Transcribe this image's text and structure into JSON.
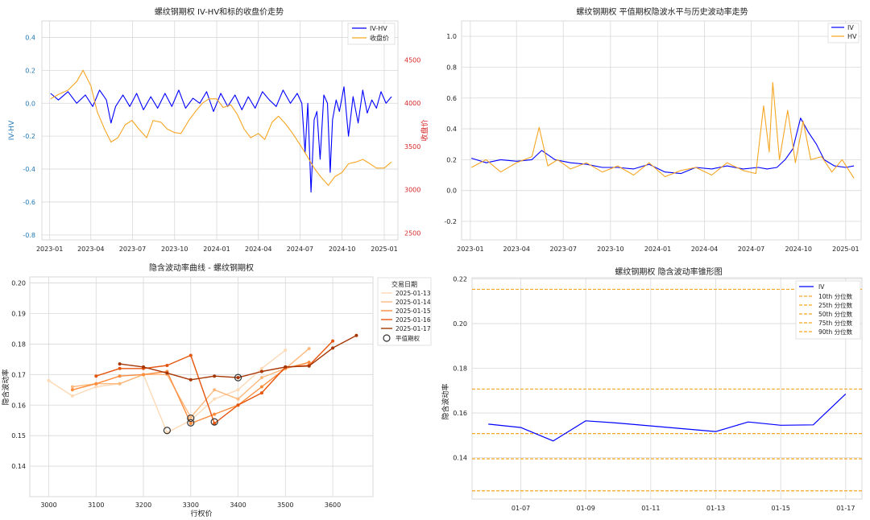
{
  "chart_data": [
    {
      "type": "line",
      "title": "螺纹钢期权 IV-HV和标的收盘价走势",
      "ylabel_left": "IV-HV",
      "ylabel_right": "收盘价",
      "xlim": [
        "2022-12-15",
        "2025-01-31"
      ],
      "ylim_left": [
        -0.83,
        0.5
      ],
      "ylim_right": [
        2420,
        4950
      ],
      "x_ticks": [
        "2023-01",
        "2023-04",
        "2023-07",
        "2023-10",
        "2024-01",
        "2024-04",
        "2024-07",
        "2024-10",
        "2025-01"
      ],
      "y_ticks_left": [
        "0.4",
        "0.2",
        "0.0",
        "-0.2",
        "-0.4",
        "-0.6",
        "-0.8"
      ],
      "y_ticks_right": [
        "4500",
        "4000",
        "3500",
        "3000",
        "2500"
      ],
      "grid": true,
      "legend": "top-right",
      "legend_entries": [
        "IV-HV",
        "收盘价"
      ],
      "series": [
        {
          "name": "IV-HV",
          "axis": "left",
          "color": "#0000ff",
          "x": [
            "2023-01-03",
            "2023-01-20",
            "2023-02-10",
            "2023-03-01",
            "2023-03-20",
            "2023-04-05",
            "2023-04-20",
            "2023-05-05",
            "2023-05-15",
            "2023-05-25",
            "2023-06-10",
            "2023-06-25",
            "2023-07-10",
            "2023-07-25",
            "2023-08-10",
            "2023-08-25",
            "2023-09-10",
            "2023-09-25",
            "2023-10-10",
            "2023-10-25",
            "2023-11-10",
            "2023-11-25",
            "2023-12-10",
            "2023-12-25",
            "2024-01-10",
            "2024-01-25",
            "2024-02-10",
            "2024-02-25",
            "2024-03-10",
            "2024-03-25",
            "2024-04-10",
            "2024-04-25",
            "2024-05-10",
            "2024-05-25",
            "2024-06-10",
            "2024-06-25",
            "2024-07-05",
            "2024-07-12",
            "2024-07-18",
            "2024-07-25",
            "2024-08-01",
            "2024-08-07",
            "2024-08-14",
            "2024-08-22",
            "2024-08-30",
            "2024-09-05",
            "2024-09-10",
            "2024-09-18",
            "2024-09-25",
            "2024-10-05",
            "2024-10-15",
            "2024-10-25",
            "2024-11-05",
            "2024-11-15",
            "2024-11-25",
            "2024-12-05",
            "2024-12-15",
            "2024-12-25",
            "2025-01-05",
            "2025-01-17"
          ],
          "values": [
            0.06,
            0.02,
            0.07,
            0.0,
            0.05,
            -0.02,
            0.08,
            0.02,
            -0.12,
            -0.02,
            0.05,
            -0.02,
            0.06,
            -0.04,
            0.04,
            -0.03,
            0.06,
            -0.02,
            0.08,
            -0.03,
            0.03,
            0.0,
            0.07,
            -0.05,
            0.06,
            -0.02,
            0.05,
            -0.04,
            0.04,
            -0.03,
            0.07,
            0.02,
            -0.02,
            0.08,
            0.0,
            0.06,
            0.0,
            -0.3,
            0.0,
            -0.54,
            -0.1,
            -0.05,
            -0.34,
            0.05,
            0.0,
            -0.42,
            -0.1,
            0.02,
            -0.05,
            0.1,
            -0.2,
            0.04,
            -0.12,
            0.08,
            -0.06,
            0.02,
            -0.03,
            0.07,
            0.0,
            0.04
          ]
        },
        {
          "name": "收盘价",
          "axis": "right",
          "color": "#f5a623",
          "x": [
            "2023-01-03",
            "2023-01-20",
            "2023-02-10",
            "2023-03-01",
            "2023-03-15",
            "2023-04-01",
            "2023-04-15",
            "2023-05-01",
            "2023-05-15",
            "2023-05-30",
            "2023-06-15",
            "2023-06-30",
            "2023-07-15",
            "2023-08-01",
            "2023-08-15",
            "2023-09-01",
            "2023-09-15",
            "2023-10-01",
            "2023-10-15",
            "2023-11-01",
            "2023-11-15",
            "2023-12-01",
            "2023-12-15",
            "2024-01-01",
            "2024-01-15",
            "2024-02-01",
            "2024-02-15",
            "2024-03-01",
            "2024-03-15",
            "2024-04-01",
            "2024-04-15",
            "2024-05-01",
            "2024-05-15",
            "2024-06-01",
            "2024-06-15",
            "2024-07-01",
            "2024-07-15",
            "2024-08-01",
            "2024-08-15",
            "2024-09-01",
            "2024-09-15",
            "2024-10-01",
            "2024-10-15",
            "2024-11-01",
            "2024-11-15",
            "2024-12-01",
            "2024-12-15",
            "2025-01-01",
            "2025-01-17"
          ],
          "values": [
            4050,
            4100,
            4150,
            4250,
            4380,
            4200,
            3900,
            3700,
            3550,
            3600,
            3750,
            3800,
            3700,
            3600,
            3800,
            3780,
            3700,
            3660,
            3650,
            3800,
            3900,
            4000,
            4050,
            4050,
            3950,
            3980,
            3870,
            3700,
            3600,
            3650,
            3580,
            3780,
            3850,
            3750,
            3650,
            3520,
            3400,
            3250,
            3150,
            3050,
            3150,
            3200,
            3300,
            3320,
            3350,
            3300,
            3250,
            3250,
            3320
          ]
        }
      ]
    },
    {
      "type": "line",
      "title": "螺纹钢期权 平值期权隐波水平与历史波动率走势",
      "xlim": [
        "2022-12-15",
        "2025-01-31"
      ],
      "ylim": [
        -0.32,
        1.1
      ],
      "x_ticks": [
        "2023-01",
        "2023-04",
        "2023-07",
        "2023-10",
        "2024-01",
        "2024-04",
        "2024-07",
        "2024-10",
        "2025-01"
      ],
      "y_ticks": [
        "1.0",
        "0.8",
        "0.6",
        "0.4",
        "0.2",
        "0.0",
        "-0.2"
      ],
      "grid": true,
      "legend": "top-right",
      "legend_entries": [
        "IV",
        "HV"
      ],
      "series": [
        {
          "name": "IV",
          "color": "#0000ff",
          "x": [
            "2023-01-03",
            "2023-02-01",
            "2023-03-01",
            "2023-04-01",
            "2023-05-01",
            "2023-05-20",
            "2023-06-15",
            "2023-07-15",
            "2023-08-15",
            "2023-09-15",
            "2023-10-15",
            "2023-11-15",
            "2023-12-15",
            "2024-01-15",
            "2024-02-15",
            "2024-03-15",
            "2024-04-15",
            "2024-05-15",
            "2024-06-15",
            "2024-07-15",
            "2024-08-01",
            "2024-08-20",
            "2024-09-05",
            "2024-09-20",
            "2024-10-05",
            "2024-10-20",
            "2024-11-05",
            "2024-11-20",
            "2024-12-10",
            "2025-01-01",
            "2025-01-17"
          ],
          "values": [
            0.21,
            0.18,
            0.2,
            0.19,
            0.2,
            0.26,
            0.2,
            0.18,
            0.17,
            0.15,
            0.15,
            0.14,
            0.17,
            0.12,
            0.11,
            0.15,
            0.14,
            0.16,
            0.14,
            0.15,
            0.14,
            0.15,
            0.2,
            0.27,
            0.47,
            0.38,
            0.3,
            0.2,
            0.16,
            0.15,
            0.16
          ]
        },
        {
          "name": "HV",
          "color": "#f5a623",
          "x": [
            "2023-01-03",
            "2023-02-01",
            "2023-03-01",
            "2023-04-01",
            "2023-05-01",
            "2023-05-15",
            "2023-06-01",
            "2023-06-20",
            "2023-07-15",
            "2023-08-15",
            "2023-09-15",
            "2023-10-15",
            "2023-11-15",
            "2023-12-15",
            "2024-01-15",
            "2024-02-15",
            "2024-03-15",
            "2024-04-15",
            "2024-05-15",
            "2024-06-15",
            "2024-07-10",
            "2024-07-25",
            "2024-08-05",
            "2024-08-12",
            "2024-08-25",
            "2024-09-10",
            "2024-09-25",
            "2024-10-10",
            "2024-10-25",
            "2024-11-15",
            "2024-12-05",
            "2024-12-25",
            "2025-01-17"
          ],
          "values": [
            0.15,
            0.2,
            0.12,
            0.18,
            0.22,
            0.41,
            0.16,
            0.2,
            0.14,
            0.18,
            0.12,
            0.16,
            0.1,
            0.18,
            0.09,
            0.13,
            0.15,
            0.1,
            0.18,
            0.13,
            0.11,
            0.55,
            0.25,
            0.7,
            0.2,
            0.52,
            0.18,
            0.45,
            0.2,
            0.22,
            0.12,
            0.2,
            0.08
          ]
        }
      ]
    },
    {
      "type": "line",
      "title": "隐含波动率曲线 - 螺纹钢期权",
      "xlabel": "行权价",
      "ylabel": "隐含波动率",
      "xlim": [
        2960,
        3685
      ],
      "ylim": [
        0.13,
        0.202
      ],
      "x_ticks": [
        "3000",
        "3100",
        "3200",
        "3300",
        "3400",
        "3500",
        "3600"
      ],
      "y_ticks": [
        "0.20",
        "0.19",
        "0.18",
        "0.17",
        "0.16",
        "0.15",
        "0.14"
      ],
      "grid": true,
      "legend": "right, outside plot",
      "legend_title": "交易日期",
      "legend_entries": [
        "2025-01-13",
        "2025-01-14",
        "2025-01-15",
        "2025-01-16",
        "2025-01-17",
        "平值期权"
      ],
      "series": [
        {
          "name": "2025-01-13",
          "color": "#fdd9b5",
          "x": [
            3000,
            3050,
            3100,
            3150,
            3200,
            3250,
            3300,
            3350,
            3400,
            3450,
            3500
          ],
          "values": [
            0.168,
            0.163,
            0.166,
            0.167,
            0.17,
            0.151,
            0.155,
            0.162,
            0.165,
            0.172,
            0.178
          ]
        },
        {
          "name": "2025-01-14",
          "color": "#fdb97d",
          "x": [
            3050,
            3100,
            3150,
            3200,
            3250,
            3300,
            3350,
            3400,
            3450,
            3500,
            3550
          ],
          "values": [
            0.166,
            0.167,
            0.167,
            0.17,
            0.17,
            0.156,
            0.165,
            0.162,
            0.169,
            0.172,
            0.1785
          ]
        },
        {
          "name": "2025-01-15",
          "color": "#fd8d3c",
          "x": [
            3050,
            3100,
            3150,
            3200,
            3250,
            3300,
            3350,
            3400,
            3450,
            3500,
            3550
          ],
          "values": [
            0.165,
            0.167,
            0.1695,
            0.17,
            0.171,
            0.154,
            0.157,
            0.16,
            0.166,
            0.172,
            0.174
          ]
        },
        {
          "name": "2025-01-16",
          "color": "#e6550d",
          "x": [
            3100,
            3150,
            3200,
            3250,
            3300,
            3350,
            3400,
            3450,
            3500,
            3550,
            3600
          ],
          "values": [
            0.1695,
            0.172,
            0.172,
            0.173,
            0.1763,
            0.154,
            0.16,
            0.164,
            0.1725,
            0.173,
            0.181
          ]
        },
        {
          "name": "2025-01-17",
          "color": "#a63603",
          "x": [
            3150,
            3200,
            3250,
            3300,
            3350,
            3400,
            3450,
            3500,
            3550,
            3600,
            3650
          ],
          "values": [
            0.1735,
            0.1725,
            0.1705,
            0.1683,
            0.1695,
            0.169,
            0.171,
            0.1725,
            0.1728,
            0.1787,
            0.1828
          ]
        }
      ],
      "atm_points": {
        "name": "平值期权",
        "x": [
          3250,
          3300,
          3300,
          3350,
          3400
        ],
        "values": [
          0.1517,
          0.1542,
          0.1557,
          0.1545,
          0.169
        ]
      }
    },
    {
      "type": "line",
      "title": "螺纹钢期权 隐含波动率锥形图",
      "ylabel": "隐含波动率",
      "xlim": [
        "2025-01-05 12:00",
        "2025-01-17 12:00"
      ],
      "ylim": [
        0.1215,
        0.2205
      ],
      "x_ticks": [
        "01-07",
        "01-09",
        "01-11",
        "01-13",
        "01-15",
        "01-17"
      ],
      "y_ticks": [
        "0.22",
        "0.20",
        "0.18",
        "0.16",
        "0.14"
      ],
      "grid": true,
      "legend": "top-right",
      "legend_entries": [
        "IV",
        "10th 分位数",
        "25th 分位数",
        "50th 分位数",
        "75th 分位数",
        "90th 分位数"
      ],
      "series": [
        {
          "name": "IV",
          "color": "#0000ff",
          "x": [
            "2025-01-06",
            "2025-01-07",
            "2025-01-08",
            "2025-01-09",
            "2025-01-10",
            "2025-01-13",
            "2025-01-14",
            "2025-01-15",
            "2025-01-16",
            "2025-01-17"
          ],
          "values": [
            0.155,
            0.1535,
            0.1475,
            0.1565,
            0.1555,
            0.1517,
            0.156,
            0.1545,
            0.1547,
            0.1685
          ]
        }
      ],
      "percentiles": [
        {
          "name": "10th 分位数",
          "value": 0.1252
        },
        {
          "name": "25th 分位数",
          "value": 0.1395
        },
        {
          "name": "50th 分位数",
          "value": 0.1508
        },
        {
          "name": "75th 分位数",
          "value": 0.1707
        },
        {
          "name": "90th 分位数",
          "value": 0.2153
        }
      ]
    }
  ]
}
